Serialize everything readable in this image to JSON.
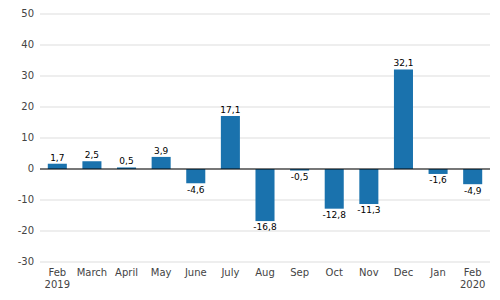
{
  "chart_data": {
    "type": "bar",
    "categories": [
      "Feb\n2019",
      "March",
      "April",
      "May",
      "June",
      "July",
      "Aug",
      "Sep",
      "Oct",
      "Nov",
      "Dec",
      "Jan",
      "Feb\n2020"
    ],
    "values": [
      1.7,
      2.5,
      0.5,
      3.9,
      -4.6,
      17.1,
      -16.8,
      -0.5,
      -12.8,
      -11.3,
      32.1,
      -1.6,
      -4.9
    ],
    "value_labels": [
      "1,7",
      "2,5",
      "0,5",
      "3,9",
      "-4,6",
      "17,1",
      "-16,8",
      "-0,5",
      "-12,8",
      "-11,3",
      "32,1",
      "-1,6",
      "-4,9"
    ],
    "data_labels": true,
    "color": "#1a72ad",
    "ylim": [
      -30,
      50
    ],
    "yticks": [
      -30,
      -20,
      -10,
      0,
      10,
      20,
      30,
      40,
      50
    ],
    "grid": true
  }
}
